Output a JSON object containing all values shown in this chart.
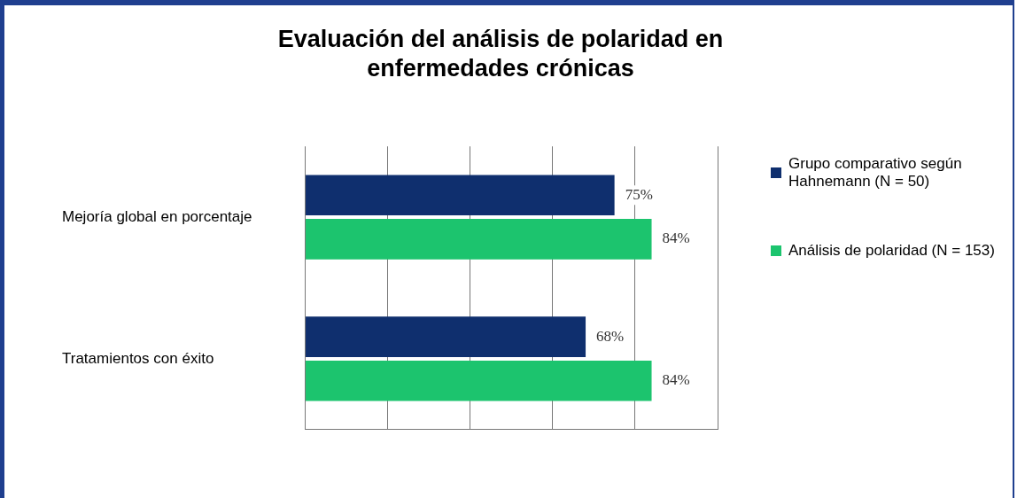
{
  "chart_data": {
    "type": "bar",
    "orientation": "horizontal",
    "title": "Evaluación del análisis de polaridad en enfermedades crónicas",
    "categories": [
      "Mejoría global en porcentaje",
      "Tratamientos con éxito"
    ],
    "series": [
      {
        "name": "Grupo comparativo según Hahnemann (N = 50)",
        "color": "#0f2f6e",
        "values": [
          75,
          68
        ],
        "value_labels": [
          "75%",
          "68%"
        ]
      },
      {
        "name": "Análisis de polaridad (N = 153)",
        "color": "#1cc46e",
        "values": [
          84,
          84
        ],
        "value_labels": [
          "84%",
          "84%"
        ]
      }
    ],
    "xlim": [
      0,
      100
    ],
    "xticks": [
      {
        "value": 0,
        "label": null
      },
      {
        "value": 20,
        "label": null
      },
      {
        "value": 40,
        "label": null
      },
      {
        "value": 60,
        "label": null
      },
      {
        "value": 80,
        "label": null
      },
      {
        "value": 100,
        "label": null
      }
    ],
    "grid": "x",
    "tick_labels": "y",
    "legend": "right"
  }
}
